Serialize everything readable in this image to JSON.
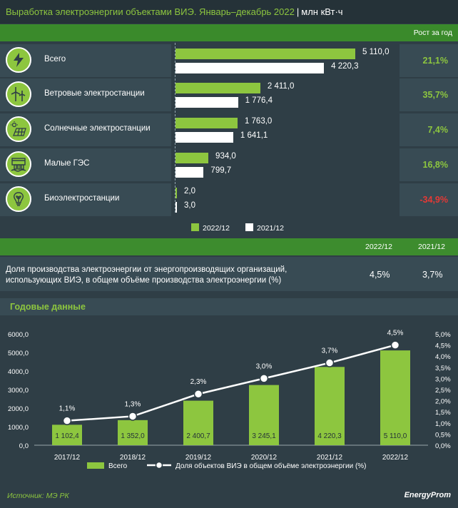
{
  "header": {
    "title": "Выработка электроэнергии объектами ВИЭ. Январь–декабрь 2022",
    "separator": "|",
    "unit": "млн кВт·ч",
    "growth_header": "Рост за год"
  },
  "rows": [
    {
      "label": "Всего",
      "icon": "lightning-icon",
      "cur_label": "5 110,0",
      "prev_label": "4 220,3",
      "growth": "21,1%",
      "negative": false
    },
    {
      "label": "Ветровые электростанции",
      "icon": "wind-turbine-icon",
      "cur_label": "2 411,0",
      "prev_label": "1 776,4",
      "growth": "35,7%",
      "negative": false
    },
    {
      "label": "Солнечные электростанции",
      "icon": "solar-panel-icon",
      "cur_label": "1 763,0",
      "prev_label": "1 641,1",
      "growth": "7,4%",
      "negative": false
    },
    {
      "label": "Малые ГЭС",
      "icon": "hydro-dam-icon",
      "cur_label": "934,0",
      "prev_label": "799,7",
      "growth": "16,8%",
      "negative": false
    },
    {
      "label": "Биоэлектростанции",
      "icon": "bio-bulb-icon",
      "cur_label": "2,0",
      "prev_label": "3,0",
      "growth": "-34,9%",
      "negative": true
    }
  ],
  "legend_top": {
    "cur": "2022/12",
    "prev": "2021/12"
  },
  "share": {
    "col_cur": "2022/12",
    "col_prev": "2021/12",
    "text": "Доля производства электроэнергии от энергопроизводящих организаций, использующих ВИЭ, в общем объёме производства электроэнергии (%)",
    "cur": "4,5%",
    "prev": "3,7%"
  },
  "annual": {
    "title": "Годовые данные"
  },
  "chart_data": [
    {
      "type": "bar",
      "categories": [
        "Всего",
        "Ветровые электростанции",
        "Солнечные электростанции",
        "Малые ГЭС",
        "Биоэлектростанции"
      ],
      "series": [
        {
          "name": "2022/12",
          "values": [
            5110.0,
            2411.0,
            1763.0,
            934.0,
            2.0
          ]
        },
        {
          "name": "2021/12",
          "values": [
            4220.3,
            1776.4,
            1641.1,
            799.7,
            3.0
          ]
        }
      ],
      "orientation": "horizontal"
    },
    {
      "type": "bar",
      "categories": [
        "2017/12",
        "2018/12",
        "2019/12",
        "2020/12",
        "2021/12",
        "2022/12"
      ],
      "series": [
        {
          "name": "Всего",
          "type": "bar",
          "axis": "left",
          "values": [
            1102.4,
            1352.0,
            2400.7,
            3245.1,
            4220.3,
            5110.0
          ],
          "labels": [
            "1 102,4",
            "1 352,0",
            "2 400,7",
            "3 245,1",
            "4 220,3",
            "5 110,0"
          ]
        },
        {
          "name": "Доля объектов ВИЭ в общем объёме электроэнергии (%)",
          "type": "line",
          "axis": "right",
          "values": [
            1.1,
            1.3,
            2.3,
            3.0,
            3.7,
            4.5
          ],
          "labels": [
            "1,1%",
            "1,3%",
            "2,3%",
            "3,0%",
            "3,7%",
            "4,5%"
          ]
        }
      ],
      "ylim": [
        0,
        6000
      ],
      "yticks": [
        "0,0",
        "1000,0",
        "2000,0",
        "3000,0",
        "4000,0",
        "5000,0",
        "6000,0"
      ],
      "y2lim": [
        0,
        5.0
      ],
      "y2ticks": [
        "0,0%",
        "0,5%",
        "1,0%",
        "1,5%",
        "2,0%",
        "2,5%",
        "3,0%",
        "3,5%",
        "4,0%",
        "4,5%",
        "5,0%"
      ],
      "grid": false,
      "legend": "bottom"
    }
  ],
  "footer": {
    "source": "Источник: МЭ РК",
    "logo": "EnergyProm"
  },
  "colors": {
    "green": "#8dc63f",
    "bg": "#2f3e46",
    "panel": "#384b54",
    "band": "#3d8c2e",
    "negative": "#e53935",
    "white": "#ffffff"
  }
}
